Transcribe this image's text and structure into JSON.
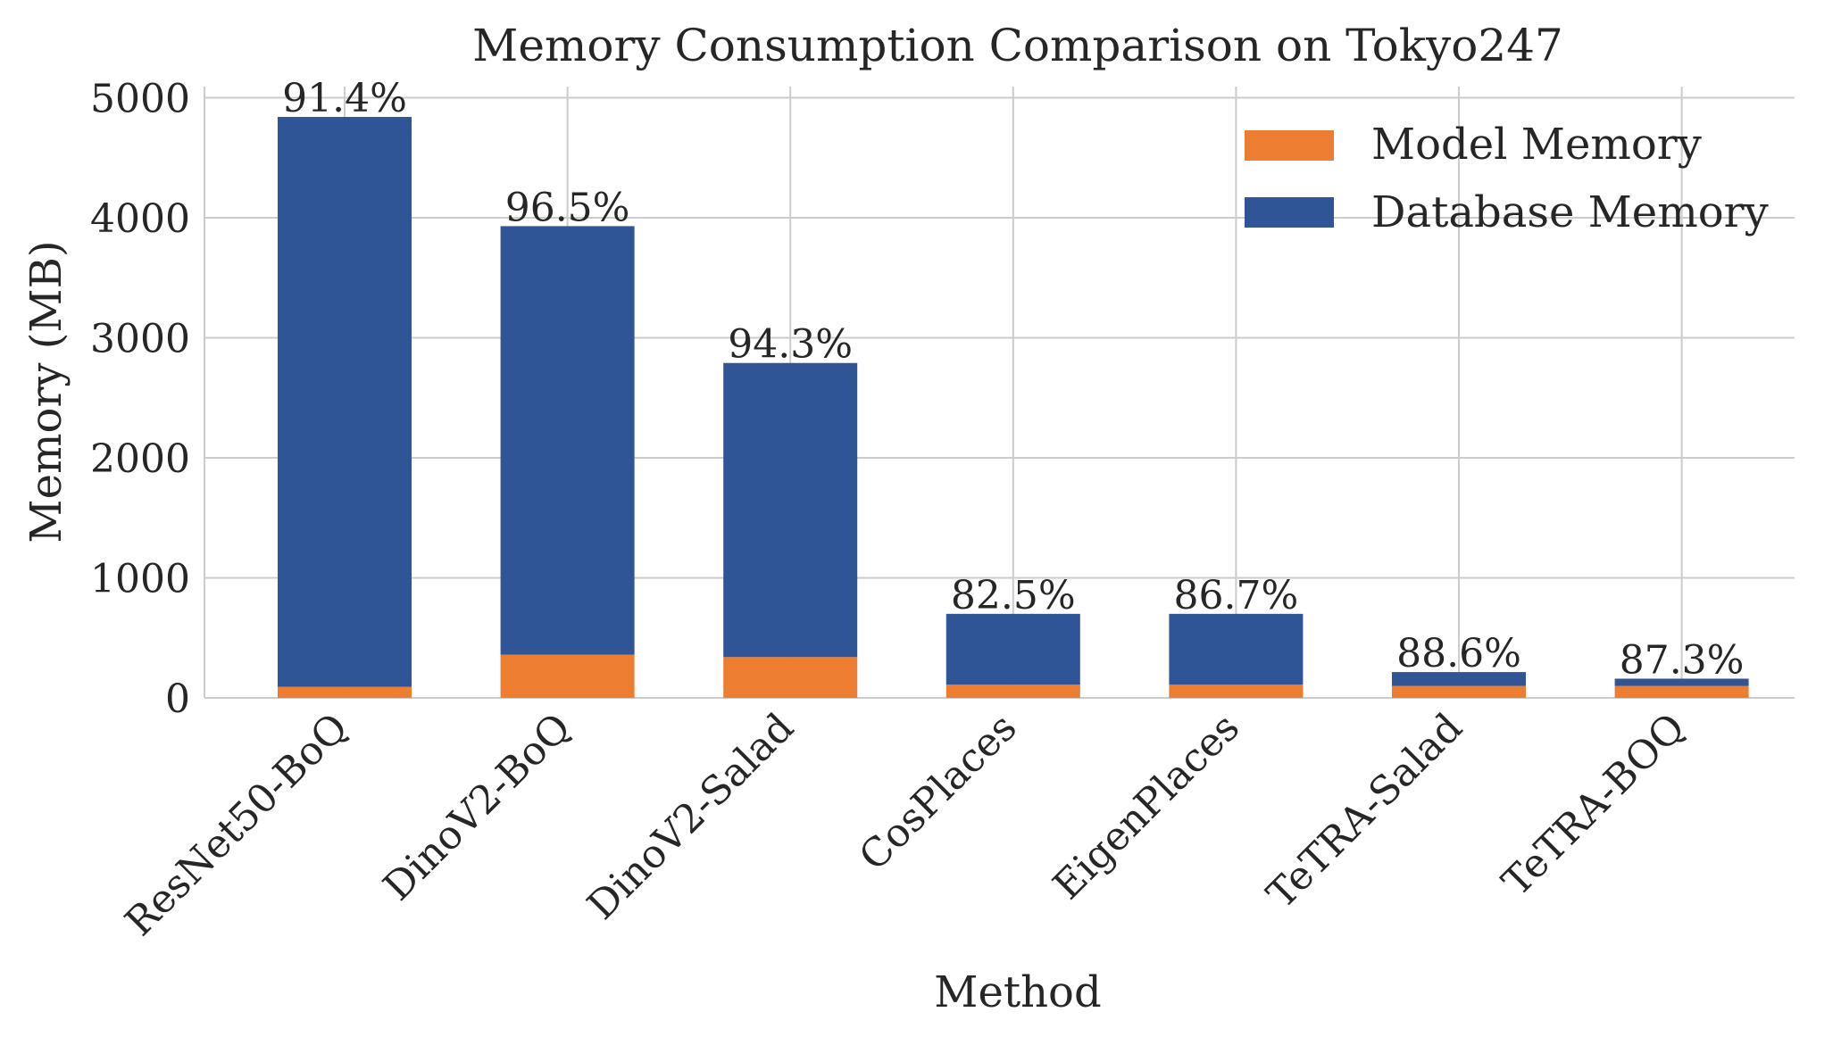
{
  "chart_data": {
    "type": "bar",
    "stacked": true,
    "title": "Memory Consumption Comparison on Tokyo247",
    "xlabel": "Method",
    "ylabel": "Memory (MB)",
    "ylim": [
      0,
      5100
    ],
    "yticks": [
      0,
      1000,
      2000,
      3000,
      4000,
      5000
    ],
    "grid": true,
    "legend_position": "top-right",
    "categories": [
      "ResNet50-BoQ",
      "DinoV2-BoQ",
      "DinoV2-Salad",
      "CosPlaces",
      "EigenPlaces",
      "TeTRA-Salad",
      "TeTRA-BOQ"
    ],
    "series": [
      {
        "name": "Model Memory",
        "color": "#ED7D31",
        "values": [
          92,
          360,
          340,
          110,
          110,
          100,
          100
        ]
      },
      {
        "name": "Database Memory",
        "color": "#2F5597",
        "values": [
          4748,
          3570,
          2450,
          590,
          590,
          115,
          60
        ]
      }
    ],
    "bar_labels": [
      "91.4%",
      "96.5%",
      "94.3%",
      "82.5%",
      "86.7%",
      "88.6%",
      "87.3%"
    ]
  }
}
